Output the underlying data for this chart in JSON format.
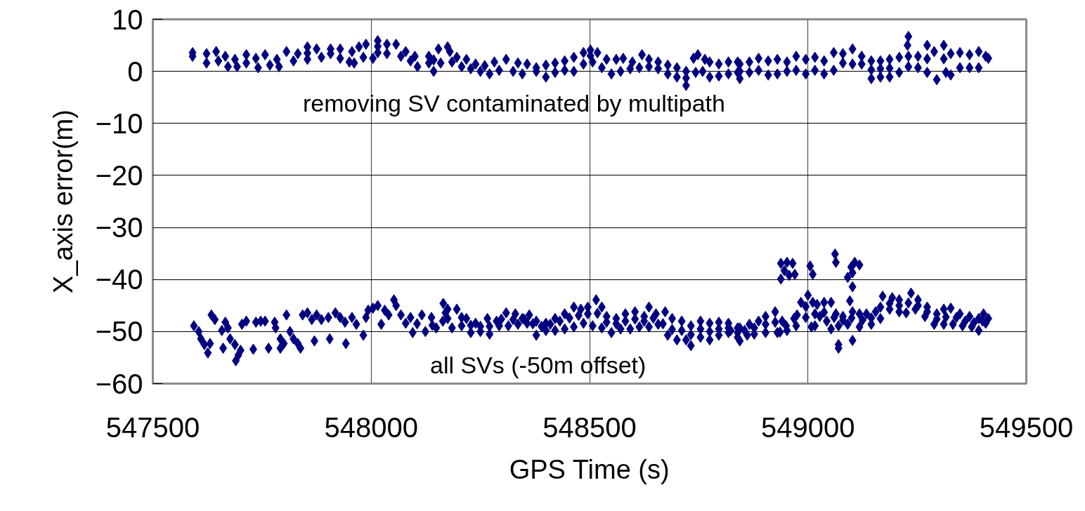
{
  "chart_data": {
    "type": "scatter",
    "xlabel": "GPS Time (s)",
    "ylabel": "X_axis error(m)",
    "xlim": [
      547500,
      549500
    ],
    "ylim": [
      -60,
      10
    ],
    "xticks": [
      547500,
      548000,
      548500,
      549000,
      549500
    ],
    "yticks": [
      -60,
      -50,
      -40,
      -30,
      -20,
      -10,
      0,
      10
    ],
    "grid": true,
    "marker": "diamond",
    "series": [
      {
        "color": "#000080",
        "x": [
          547591,
          547591,
          547623,
          547623,
          547645,
          547650,
          547666,
          547672,
          547688,
          547693,
          547714,
          547714,
          547736,
          547741,
          547757,
          547768,
          547784,
          547789,
          547806,
          547822,
          547832,
          547854,
          547854,
          547854,
          547875,
          547886,
          547907,
          547907,
          547929,
          547929,
          547950,
          547956,
          547961,
          547972,
          547982,
          547988,
          548004,
          548015,
          548015,
          548015,
          548036,
          548036,
          548057,
          548068,
          548079,
          548090,
          548100,
          548106,
          548132,
          548132,
          548143,
          548143,
          548154,
          548159,
          548175,
          548180,
          548185,
          548196,
          548207,
          548218,
          548228,
          548239,
          548250,
          548260,
          548271,
          548282,
          548293,
          548309,
          548325,
          548336,
          548346,
          548357,
          548378,
          548378,
          548400,
          548400,
          548421,
          548421,
          548443,
          548443,
          548464,
          548464,
          548486,
          548486,
          548502,
          548502,
          548507,
          548518,
          548528,
          548539,
          548550,
          548561,
          548571,
          548577,
          548593,
          548598,
          548614,
          548620,
          548636,
          548636,
          548657,
          548657,
          548679,
          548679,
          548700,
          548700,
          548721,
          548721,
          548721,
          548738,
          548743,
          548748,
          548759,
          548764,
          548775,
          548775,
          548796,
          548796,
          548818,
          548818,
          548839,
          548839,
          548844,
          548844,
          548844,
          548866,
          548866,
          548887,
          548887,
          548909,
          548909,
          548930,
          548930,
          548952,
          548952,
          548973,
          548973,
          548995,
          548995,
          549016,
          549016,
          549037,
          549037,
          549059,
          549059,
          549080,
          549080,
          549102,
          549102,
          549123,
          549123,
          549145,
          549145,
          549145,
          549166,
          549166,
          549166,
          549187,
          549187,
          549187,
          549209,
          549209,
          549228,
          549230,
          549230,
          549230,
          549252,
          549252,
          549273,
          549273,
          549273,
          549289,
          549295,
          549311,
          549311,
          549316,
          549327,
          549327,
          549348,
          549348,
          549370,
          549370,
          549391,
          549391,
          549407,
          549413
        ],
        "values": [
          3.6,
          2.9,
          3.4,
          1.6,
          3.8,
          2.0,
          2.9,
          0.9,
          2.3,
          0.9,
          3.2,
          1.6,
          2.5,
          0.7,
          3.2,
          1.2,
          2.3,
          0.9,
          3.8,
          2.0,
          3.4,
          4.7,
          2.3,
          3.5,
          4.3,
          2.7,
          4.3,
          3.4,
          4.3,
          2.5,
          1.8,
          3.8,
          1.6,
          4.7,
          2.7,
          5.2,
          2.5,
          5.9,
          3.6,
          4.8,
          5.2,
          3.4,
          5.2,
          2.9,
          3.8,
          2.0,
          2.9,
          0.9,
          2.9,
          1.6,
          0.0,
          2.2,
          4.3,
          1.6,
          4.7,
          3.8,
          1.8,
          2.7,
          0.9,
          2.3,
          0.5,
          1.4,
          0.0,
          1.1,
          -0.5,
          1.8,
          0.2,
          2.3,
          0.0,
          1.6,
          -0.5,
          1.4,
          0.7,
          0.0,
          1.2,
          -1.1,
          1.6,
          -0.2,
          2.0,
          0.2,
          2.7,
          0.0,
          3.6,
          1.4,
          4.1,
          3.0,
          1.8,
          3.6,
          0.7,
          2.3,
          -0.5,
          2.3,
          0.0,
          2.5,
          0.5,
          1.8,
          0.7,
          3.2,
          2.3,
          0.9,
          1.8,
          0.5,
          1.2,
          -0.5,
          0.7,
          -1.1,
          0.0,
          -2.7,
          -1.3,
          2.5,
          -0.2,
          3.2,
          0.0,
          2.3,
          1.8,
          -1.1,
          1.4,
          -0.9,
          1.8,
          -0.5,
          1.8,
          -0.2,
          1.4,
          -1.4,
          0.0,
          1.8,
          -0.2,
          2.5,
          0.2,
          2.0,
          -0.7,
          2.3,
          -0.5,
          1.8,
          0.0,
          2.9,
          0.2,
          2.3,
          -0.5,
          2.7,
          0.2,
          2.0,
          -0.5,
          3.6,
          0.2,
          3.4,
          1.6,
          4.3,
          1.4,
          2.9,
          1.4,
          2.0,
          -1.4,
          0.3,
          2.0,
          -1.1,
          0.5,
          2.3,
          -1.1,
          0.6,
          2.7,
          -0.2,
          5.0,
          6.7,
          0.9,
          2.9,
          2.9,
          0.7,
          5.0,
          -0.2,
          2.4,
          3.8,
          -1.6,
          5.0,
          2.4,
          -0.2,
          3.4,
          -0.7,
          3.6,
          0.7,
          3.2,
          0.7,
          3.8,
          0.7,
          2.9,
          2.5
        ]
      },
      {
        "color": "#000080",
        "x": [
          547594,
          547605,
          547610,
          547618,
          547626,
          547631,
          547634,
          547642,
          547658,
          547661,
          547666,
          547672,
          547677,
          547688,
          547690,
          547696,
          547701,
          547704,
          547714,
          547730,
          547736,
          547747,
          547757,
          547765,
          547779,
          547781,
          547792,
          547792,
          547800,
          547806,
          547814,
          547822,
          547832,
          547838,
          547843,
          547854,
          547864,
          547870,
          547875,
          547886,
          547902,
          547905,
          547918,
          547929,
          547940,
          547942,
          547956,
          547966,
          547982,
          547988,
          547993,
          548004,
          548015,
          548023,
          548031,
          548052,
          548057,
          548068,
          548079,
          548090,
          548095,
          548116,
          548124,
          548138,
          548149,
          548165,
          548170,
          548040,
          548105,
          548140,
          548175,
          548196,
          548218,
          548239,
          548266,
          548287,
          548309,
          548330,
          548346,
          548362,
          548378,
          548400,
          548421,
          548443,
          548464,
          548480,
          548496,
          548515,
          548528,
          548539,
          548561,
          548582,
          548604,
          548625,
          548636,
          548652,
          548673,
          548689,
          548711,
          548732,
          548754,
          548775,
          548796,
          548818,
          548839,
          548164,
          548185,
          548207,
          548228,
          548250,
          548271,
          548293,
          548314,
          548336,
          548357,
          548378,
          548400,
          548421,
          548443,
          548464,
          548486,
          548507,
          548528,
          548550,
          548571,
          548593,
          548614,
          548636,
          548657,
          548679,
          548700,
          548721,
          548732,
          548754,
          548775,
          548796,
          548818,
          548839,
          548175,
          548207,
          548228,
          548250,
          548271,
          548298,
          548325,
          548350,
          548370,
          548390,
          548410,
          548432,
          548454,
          548475,
          548496,
          548518,
          548539,
          548561,
          548582,
          548604,
          548625,
          548646,
          548668,
          548689,
          548711,
          548732,
          548754,
          548775,
          548796,
          548818,
          548839,
          548844,
          548866,
          548887,
          548903,
          548925,
          548941,
          548968,
          548984,
          549000,
          549011,
          549021,
          549037,
          549053,
          549064,
          549080,
          549102,
          549118,
          549134,
          549155,
          549171,
          549193,
          549209,
          549236,
          549252,
          549273,
          549295,
          549311,
          549327,
          549348,
          549370,
          549391,
          549402,
          549413,
          548823,
          548844,
          548861,
          548877,
          548903,
          548930,
          548952,
          548973,
          548995,
          549008,
          549027,
          549043,
          549053,
          549070,
          549091,
          549118,
          549145,
          549166,
          549187,
          549209,
          549225,
          549246,
          549268,
          549289,
          549311,
          549332,
          549354,
          549375,
          549391,
          549407,
          548855,
          548877,
          548903,
          548925,
          548950,
          548975,
          548995,
          549016,
          549037,
          549060,
          549080,
          549100,
          549125,
          549145,
          549166,
          549187,
          549209,
          549230,
          549252,
          549273,
          549295,
          549316,
          549340,
          549360,
          549380,
          549400,
          548938,
          548952,
          548965,
          548946,
          548970,
          548938,
          548957,
          549005,
          549011,
          549062,
          549064,
          549107,
          549118,
          549099,
          549091,
          549102,
          549102,
          549096,
          549070,
          549070,
          549102,
          549016,
          548936
        ],
        "values": [
          -48.9,
          -50.0,
          -51.4,
          -52.5,
          -54.1,
          -52.3,
          -46.8,
          -47.7,
          -49.8,
          -53.2,
          -48.2,
          -49.3,
          -51.4,
          -52.5,
          -55.6,
          -54.5,
          -53.6,
          -48.6,
          -48.0,
          -53.4,
          -48.2,
          -48.0,
          -48.0,
          -53.2,
          -48.2,
          -49.3,
          -51.4,
          -53.2,
          -52.3,
          -46.8,
          -50.0,
          -51.4,
          -52.3,
          -53.2,
          -46.8,
          -46.4,
          -47.7,
          -51.8,
          -46.8,
          -47.7,
          -47.3,
          -51.4,
          -46.4,
          -47.3,
          -48.2,
          -52.3,
          -47.3,
          -48.6,
          -50.7,
          -47.3,
          -45.9,
          -45.5,
          -45.0,
          -48.6,
          -45.9,
          -43.9,
          -45.0,
          -46.8,
          -48.4,
          -47.3,
          -50.2,
          -46.8,
          -50.0,
          -47.3,
          -49.3,
          -44.6,
          -46.4,
          -46.8,
          -48.5,
          -48.8,
          -45.7,
          -45.7,
          -47.5,
          -48.4,
          -47.5,
          -48.0,
          -46.4,
          -46.6,
          -47.5,
          -46.8,
          -48.0,
          -48.4,
          -47.5,
          -46.6,
          -45.3,
          -45.7,
          -45.3,
          -43.9,
          -45.3,
          -47.1,
          -47.5,
          -46.6,
          -46.2,
          -47.1,
          -45.3,
          -46.6,
          -46.2,
          -47.5,
          -48.0,
          -48.9,
          -48.0,
          -48.4,
          -48.2,
          -48.4,
          -49.3,
          -48.0,
          -49.3,
          -48.9,
          -50.2,
          -50.0,
          -50.5,
          -48.9,
          -48.9,
          -48.6,
          -48.4,
          -50.7,
          -49.8,
          -49.8,
          -49.5,
          -49.1,
          -48.4,
          -48.9,
          -49.3,
          -50.2,
          -49.5,
          -49.5,
          -49.1,
          -49.1,
          -48.6,
          -50.7,
          -51.6,
          -51.6,
          -52.7,
          -51.1,
          -51.6,
          -50.7,
          -50.2,
          -51.1,
          -47.5,
          -47.3,
          -48.8,
          -49.0,
          -49.0,
          -47.6,
          -47.7,
          -47.6,
          -48.5,
          -49.0,
          -48.6,
          -48.0,
          -47.4,
          -46.9,
          -46.6,
          -46.5,
          -48.2,
          -48.5,
          -48.0,
          -47.6,
          -48.0,
          -47.4,
          -48.5,
          -49.6,
          -49.8,
          -50.6,
          -49.5,
          -50.0,
          -49.5,
          -49.3,
          -50.2,
          -49.3,
          -48.6,
          -48.0,
          -47.1,
          -46.2,
          -48.0,
          -47.5,
          -44.4,
          -43.0,
          -44.4,
          -44.8,
          -44.4,
          -44.4,
          -46.6,
          -47.1,
          -46.2,
          -46.6,
          -46.6,
          -46.2,
          -43.2,
          -43.5,
          -43.9,
          -42.6,
          -43.9,
          -45.3,
          -46.6,
          -45.7,
          -45.5,
          -46.6,
          -47.1,
          -47.5,
          -46.6,
          -47.5,
          -49.8,
          -51.8,
          -50.7,
          -50.5,
          -50.2,
          -50.2,
          -49.8,
          -48.9,
          -47.3,
          -49.1,
          -47.1,
          -48.0,
          -49.5,
          -48.9,
          -48.6,
          -49.1,
          -48.6,
          -47.5,
          -45.7,
          -46.2,
          -46.4,
          -45.7,
          -47.1,
          -48.6,
          -48.6,
          -48.6,
          -48.9,
          -49.1,
          -49.8,
          -48.4,
          -49.8,
          -49.3,
          -48.6,
          -48.2,
          -48.9,
          -46.8,
          -45.2,
          -46.6,
          -46.3,
          -47.3,
          -47.8,
          -47.4,
          -47.8,
          -47.4,
          -45.3,
          -44.6,
          -45.0,
          -44.5,
          -45.0,
          -46.2,
          -47.6,
          -47.2,
          -47.3,
          -48.0,
          -48.3,
          -48.0,
          -36.9,
          -36.7,
          -36.9,
          -38.3,
          -39.0,
          -39.9,
          -39.2,
          -37.4,
          -39.0,
          -35.1,
          -36.7,
          -36.7,
          -37.2,
          -37.6,
          -39.6,
          -38.7,
          -41.4,
          -44.1,
          -52.5,
          -53.2,
          -51.7,
          -48.9,
          -50.1
        ]
      }
    ],
    "annotations": [
      "removing SV contaminated by multipath",
      "all SVs (-50m offset)"
    ]
  }
}
